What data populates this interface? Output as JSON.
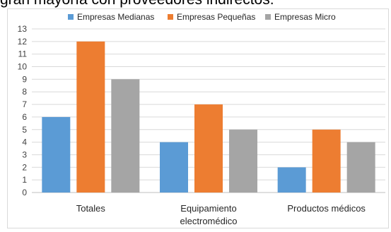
{
  "caption": "gran mayoría con proveedores indirectos.",
  "chart_data": {
    "type": "bar",
    "categories": [
      [
        "Totales"
      ],
      [
        "Equipamiento",
        "electromédico"
      ],
      [
        "Productos médicos"
      ]
    ],
    "series": [
      {
        "name": "Empresas Medianas",
        "color": "#5b9bd5",
        "values": [
          6,
          4,
          2
        ]
      },
      {
        "name": "Empresas Pequeñas",
        "color": "#ed7d31",
        "values": [
          12,
          7,
          5
        ]
      },
      {
        "name": "Empresas Micro",
        "color": "#a5a5a5",
        "values": [
          9,
          5,
          4
        ]
      }
    ],
    "ylim": [
      0,
      13
    ],
    "yticks": [
      0,
      1,
      2,
      3,
      4,
      5,
      6,
      7,
      8,
      9,
      10,
      11,
      12,
      13
    ],
    "grid": true,
    "legend": "top"
  }
}
